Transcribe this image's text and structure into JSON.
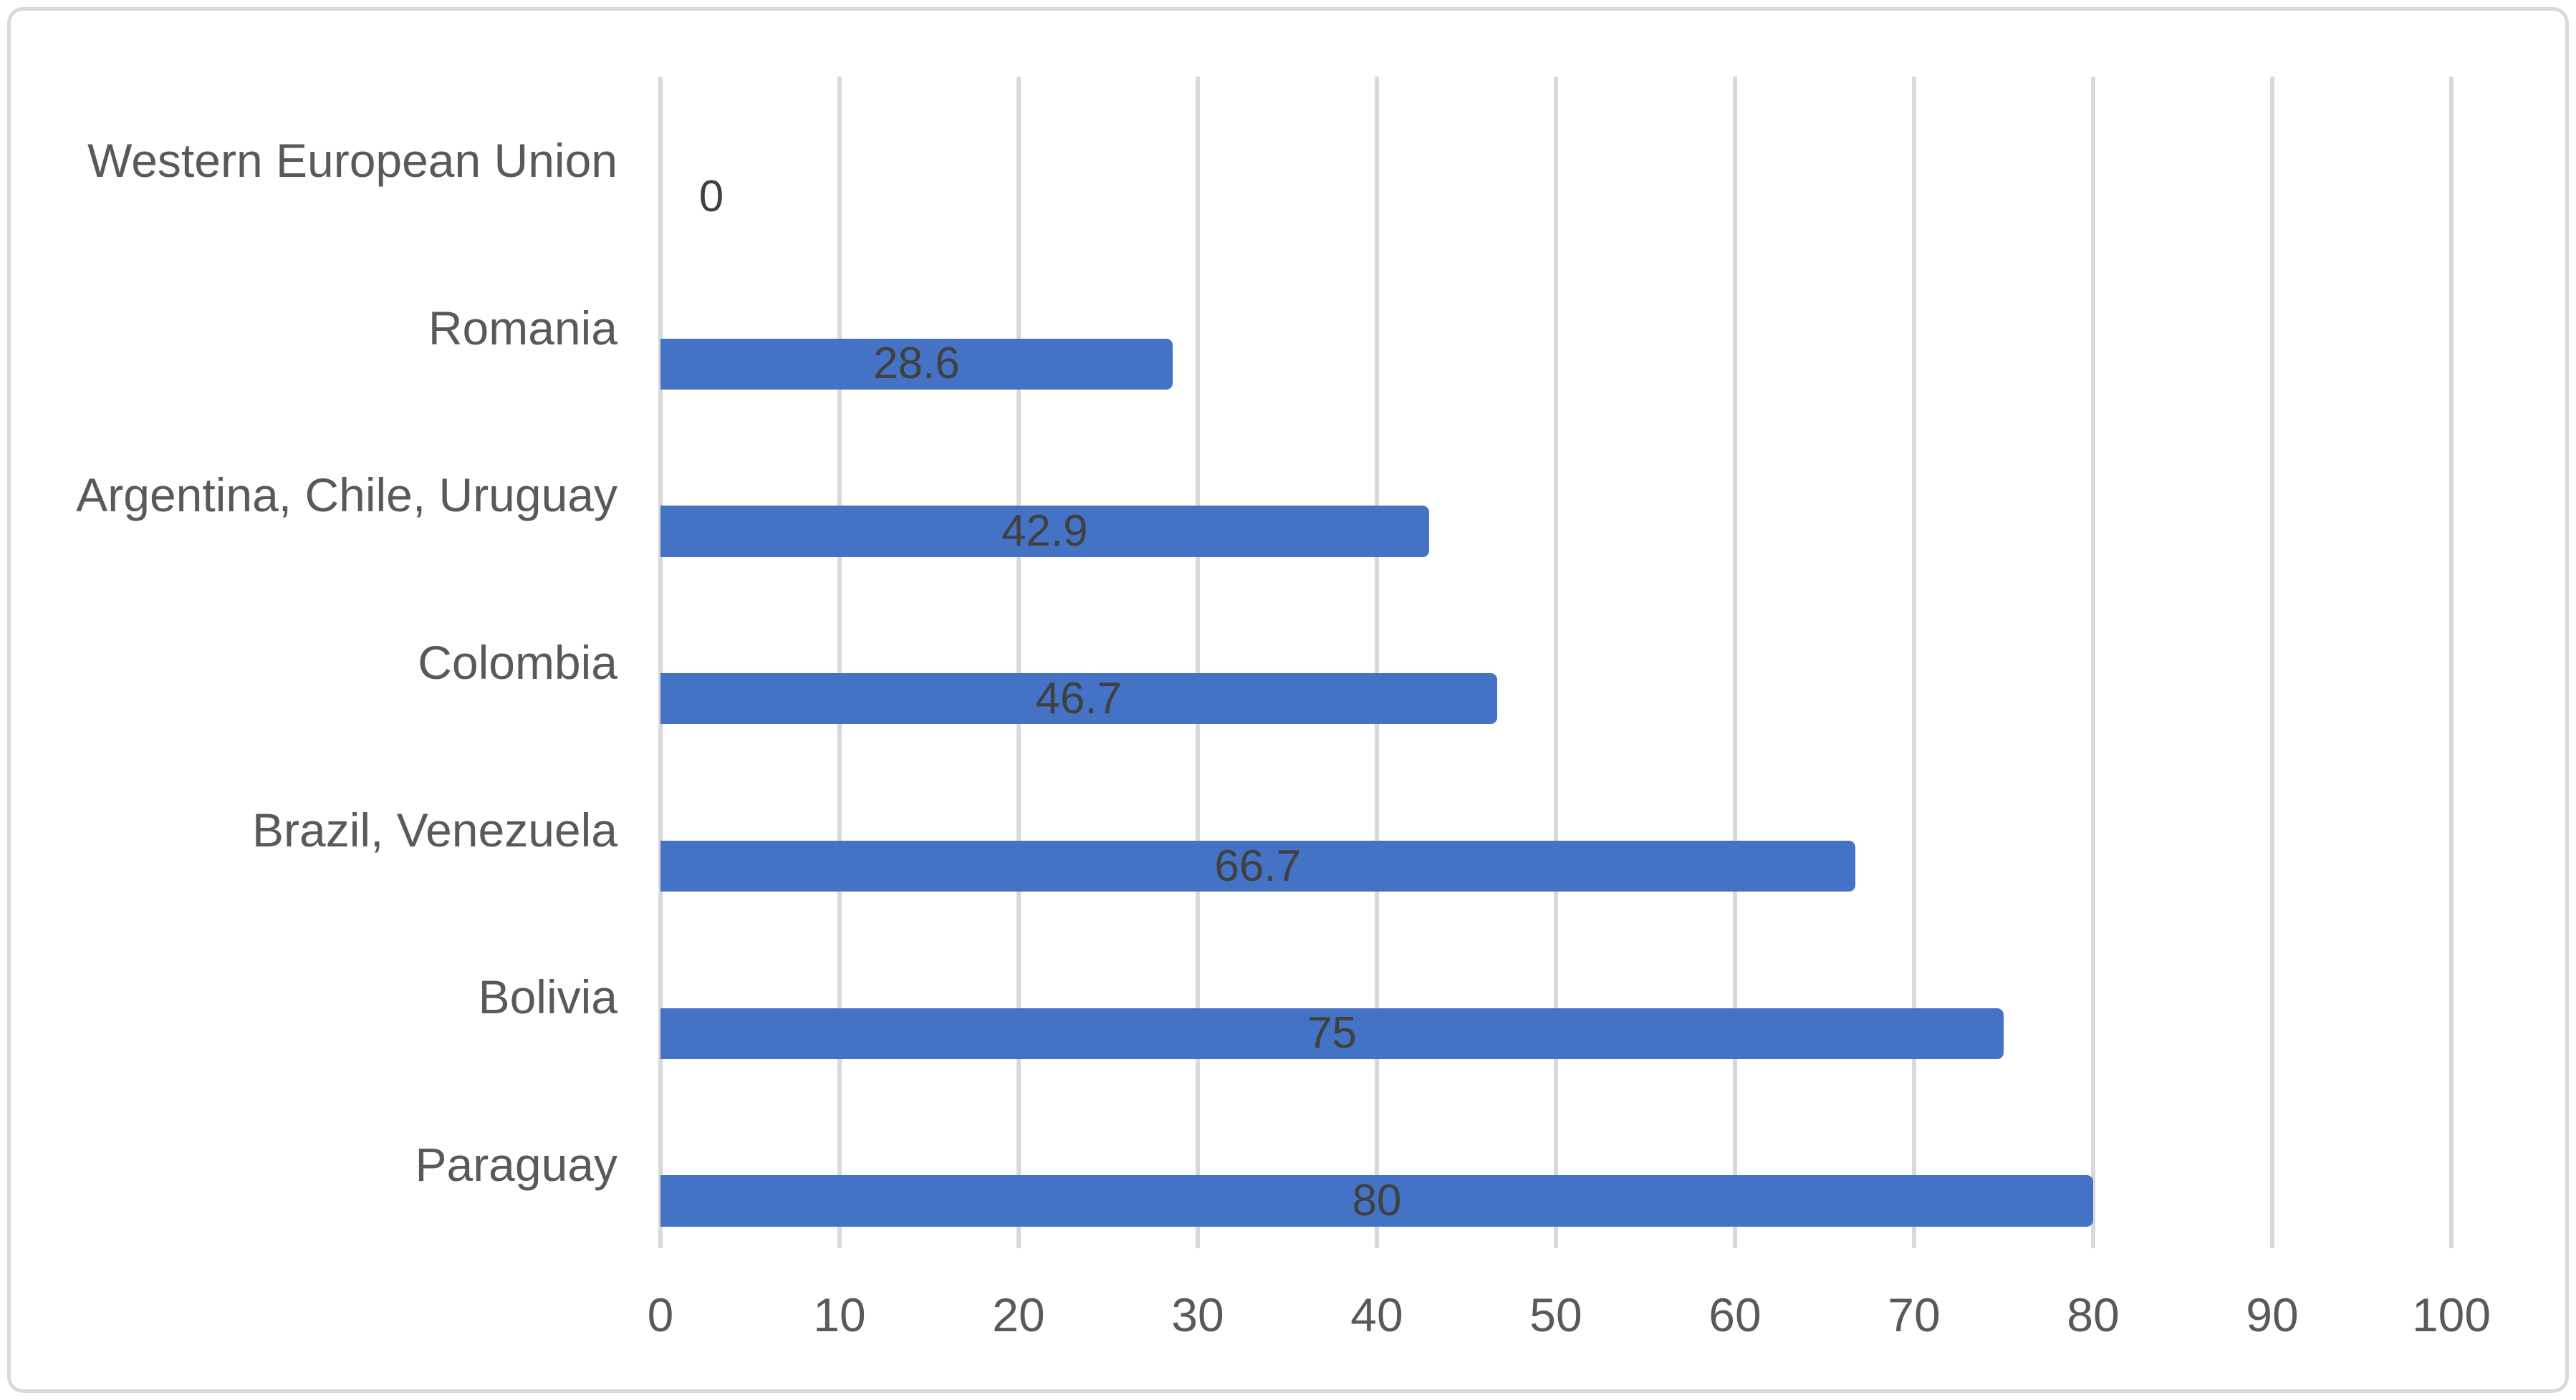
{
  "chart_data": {
    "type": "bar",
    "orientation": "horizontal",
    "title": "",
    "legend": "none",
    "grid": "vertical gridlines on",
    "categories": [
      "Western European Union",
      "Romania",
      "Argentina, Chile, Uruguay",
      "Colombia",
      "Brazil, Venezuela",
      "Bolivia",
      "Paraguay"
    ],
    "values": [
      0,
      28.6,
      42.9,
      46.7,
      66.7,
      75,
      80
    ],
    "data_labels": [
      "0",
      "28.6",
      "42.9",
      "46.7",
      "66.7",
      "75",
      "80"
    ],
    "data_label_position": "center of bar; zero value labeled just right of axis",
    "xlim": [
      0,
      100
    ],
    "x_ticks": [
      0,
      10,
      20,
      30,
      40,
      50,
      60,
      70,
      80,
      90,
      100
    ],
    "x_tick_labels": [
      "0",
      "10",
      "20",
      "30",
      "40",
      "50",
      "60",
      "70",
      "80",
      "90",
      "100"
    ],
    "xlabel": "",
    "ylabel": "",
    "colors": {
      "bar": "#4472C4",
      "gridline": "#D9D9D9",
      "frame_border": "#D9D9D9",
      "axis_text": "#595959",
      "data_label_text": "#404040",
      "background": "#FFFFFF"
    }
  }
}
